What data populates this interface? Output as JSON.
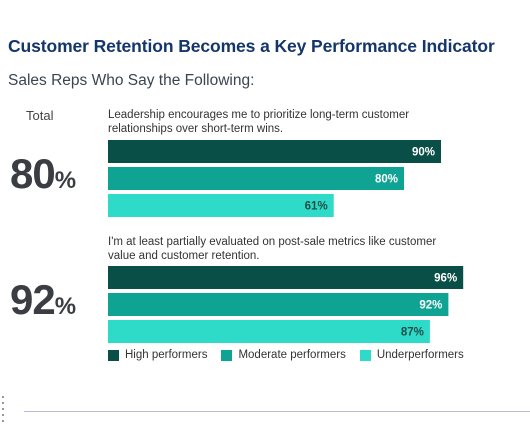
{
  "title": "Customer Retention Becomes a Key Performance Indicator",
  "subtitle": "Sales Reps Who Say the Following:",
  "total_label": "Total",
  "colors": {
    "high": "#0a4f47",
    "moderate": "#0fa394",
    "under": "#2edbc9"
  },
  "chart_data": {
    "type": "bar",
    "orientation": "horizontal",
    "xlim": [
      0,
      100
    ],
    "groups": [
      {
        "question": "Leadership encourages me to prioritize long-term customer relationships over short-term wins.",
        "total": "80",
        "total_symbol": "%",
        "bars": [
          {
            "series": "High performers",
            "value": 90,
            "label": "90%"
          },
          {
            "series": "Moderate performers",
            "value": 80,
            "label": "80%"
          },
          {
            "series": "Underperformers",
            "value": 61,
            "label": "61%"
          }
        ]
      },
      {
        "question": "I'm at least partially evaluated on post-sale metrics like customer value and customer retention.",
        "total": "92",
        "total_symbol": "%",
        "bars": [
          {
            "series": "High performers",
            "value": 96,
            "label": "96%"
          },
          {
            "series": "Moderate performers",
            "value": 92,
            "label": "92%"
          },
          {
            "series": "Underperformers",
            "value": 87,
            "label": "87%"
          }
        ]
      }
    ],
    "legend": [
      "High performers",
      "Moderate performers",
      "Underperformers"
    ],
    "legend_position": "bottom"
  }
}
